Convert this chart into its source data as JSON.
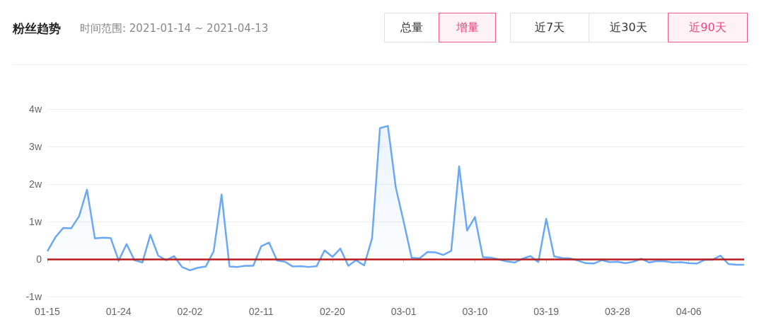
{
  "chart_data": {
    "type": "area",
    "title": "粉丝趋势",
    "subtitle": "时间范围: 2021-01-14 ~ 2021-04-13",
    "annotations": [
      "总量",
      "增量",
      "近7天",
      "近30天",
      "近90天"
    ],
    "categories": [
      "01-15",
      null,
      null,
      null,
      null,
      null,
      null,
      null,
      null,
      "01-24",
      null,
      null,
      null,
      null,
      null,
      null,
      null,
      null,
      "02-02",
      null,
      null,
      null,
      null,
      null,
      null,
      null,
      null,
      "02-11",
      null,
      null,
      null,
      null,
      null,
      null,
      null,
      null,
      "02-20",
      null,
      null,
      null,
      null,
      null,
      null,
      null,
      null,
      "03-01",
      null,
      null,
      null,
      null,
      null,
      null,
      null,
      null,
      "03-10",
      null,
      null,
      null,
      null,
      null,
      null,
      null,
      null,
      "03-19",
      null,
      null,
      null,
      null,
      null,
      null,
      null,
      null,
      "03-28",
      null,
      null,
      null,
      null,
      null,
      null,
      null,
      null,
      "04-06",
      null,
      null,
      null,
      null,
      null,
      null,
      null
    ],
    "series": [
      {
        "color": "#6aa8f7",
        "values": [
          0.21,
          0.58,
          0.83,
          0.82,
          1.14,
          1.85,
          0.55,
          0.57,
          0.56,
          -0.04,
          0.4,
          -0.03,
          -0.09,
          0.65,
          0.09,
          -0.03,
          0.08,
          -0.21,
          -0.3,
          -0.23,
          -0.2,
          0.21,
          1.72,
          -0.2,
          -0.21,
          -0.18,
          -0.18,
          0.34,
          0.44,
          -0.04,
          -0.07,
          -0.2,
          -0.19,
          -0.21,
          -0.19,
          0.23,
          0.06,
          0.28,
          -0.18,
          -0.03,
          -0.17,
          0.55,
          3.49,
          3.55,
          1.91,
          0.99,
          0.04,
          0.02,
          0.19,
          0.18,
          0.11,
          0.22,
          2.47,
          0.76,
          1.12,
          0.05,
          0.04,
          -0.01,
          -0.06,
          -0.09,
          0.01,
          0.08,
          -0.08,
          1.07,
          0.07,
          0.03,
          0.02,
          -0.04,
          -0.11,
          -0.12,
          -0.03,
          -0.08,
          -0.07,
          -0.11,
          -0.07,
          0.01,
          -0.09,
          -0.05,
          -0.06,
          -0.09,
          -0.08,
          -0.11,
          -0.12,
          -0.02,
          -0.02,
          0.09,
          -0.13,
          -0.15,
          -0.15
        ]
      }
    ],
    "ylim": [
      -1,
      4
    ],
    "yticks": [
      {
        "value": -1,
        "label": "-1w"
      },
      0,
      {
        "value": 1,
        "label": "1w"
      },
      {
        "value": 2,
        "label": "2w"
      },
      {
        "value": 3,
        "label": "3w"
      },
      {
        "value": 4,
        "label": "4w"
      }
    ],
    "ref_lines": [
      {
        "axis": "y",
        "value": 0,
        "color": "#b81c1c"
      }
    ],
    "grid": "y",
    "marker": "none"
  }
}
